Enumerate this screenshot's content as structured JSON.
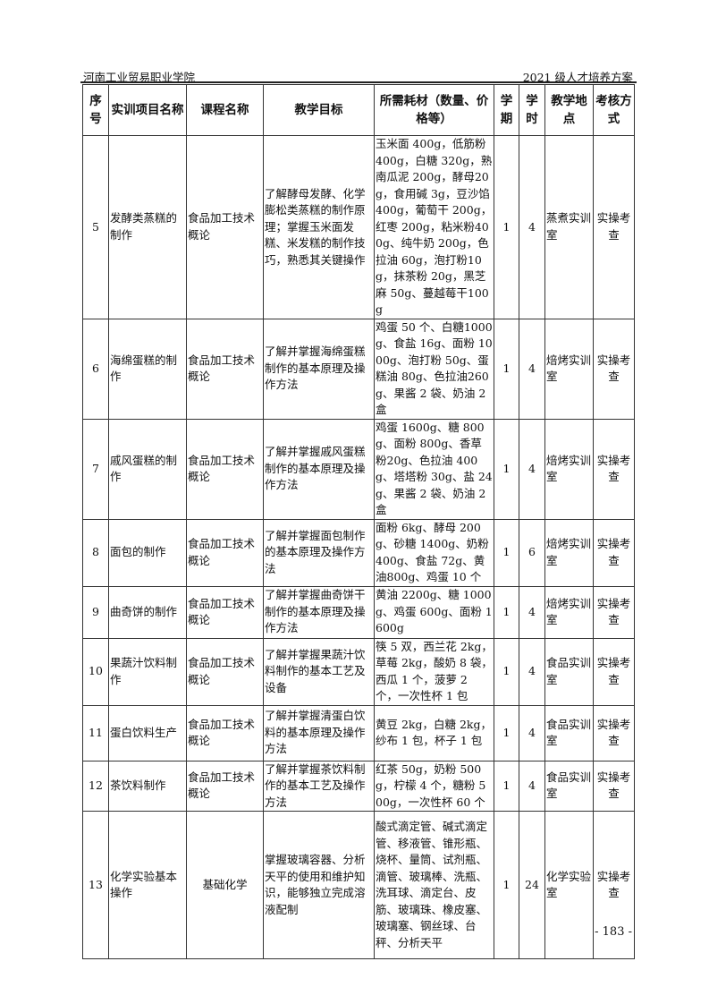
{
  "header": {
    "left": "河南工业贸易职业学院",
    "right": "2021 级人才培养方案"
  },
  "columns": [
    "序号",
    "实训项目名称",
    "课程名称",
    "教学目标",
    "所需耗材（数量、价格等）",
    "学期",
    "学时",
    "教学地点",
    "考核方式"
  ],
  "rows": [
    {
      "no": "5",
      "name": "发酵类蒸糕的制作",
      "course": "食品加工技术概论",
      "goal": "了解酵母发酵、化学膨松类蒸糕的制作原理；掌握玉米面发糕、米发糕的制作技巧，熟悉其关键操作",
      "materials": "玉米面 400g，低筋粉400g，白糖 320g，熟南瓜泥 200g，酵母20g，食用碱 3g，豆沙馅 400g，葡萄干 200g，红枣 200g，粘米粉400g、纯牛奶 200g，色拉油 60g，泡打粉10g，抹茶粉 20g，黑芝麻 50g、蔓越莓干100g",
      "term": "1",
      "hours": "4",
      "place": "蒸煮实训室",
      "exam": "实操考查"
    },
    {
      "no": "6",
      "name": "海绵蛋糕的制作",
      "course": "食品加工技术概论",
      "goal": "了解并掌握海绵蛋糕制作的基本原理及操作方法",
      "materials": "鸡蛋 50 个、白糖1000g、食盐 16g、面粉 1000g、泡打粉 50g、蛋糕油 80g、色拉油260g、果酱 2 袋、奶油 2 盒",
      "term": "1",
      "hours": "4",
      "place": "焙烤实训室",
      "exam": "实操考查"
    },
    {
      "no": "7",
      "name": "戚风蛋糕的制作",
      "course": "食品加工技术概论",
      "goal": "了解并掌握戚风蛋糕制作的基本原理及操作方法",
      "materials": "鸡蛋 1600g、糖 800g、面粉 800g、香草粉20g、色拉油 400g、塔塔粉 30g、盐 24g、果酱 2 袋、奶油 2 盒",
      "term": "1",
      "hours": "4",
      "place": "焙烤实训室",
      "exam": "实操考查"
    },
    {
      "no": "8",
      "name": "面包的制作",
      "course": "食品加工技术概论",
      "goal": "了解并掌握面包制作的基本原理及操作方法",
      "materials": "面粉 6kg、酵母 200g、砂糖 1400g、奶粉400g、食盐 72g、黄油800g、鸡蛋 10 个",
      "term": "1",
      "hours": "6",
      "place": "焙烤实训室",
      "exam": "实操考查"
    },
    {
      "no": "9",
      "name": "曲奇饼的制作",
      "course": "食品加工技术概论",
      "goal": "了解并掌握曲奇饼干制作的基本原理及操作方法",
      "materials": "黄油 2200g、糖 1000g、鸡蛋 600g、面粉 1600g",
      "term": "1",
      "hours": "4",
      "place": "焙烤实训室",
      "exam": "实操考查"
    },
    {
      "no": "10",
      "name": "果蔬汁饮料制作",
      "course": "食品加工技术概论",
      "goal": "了解并掌握果蔬汁饮料制作的基本工艺及设备",
      "materials": "筷 5 双，西兰花 2kg，草莓 2kg，酸奶 8 袋，西瓜 1 个，菠萝 2 个，一次性杯 1 包",
      "term": "1",
      "hours": "4",
      "place": "食品实训室",
      "exam": "实操考查"
    },
    {
      "no": "11",
      "name": "蛋白饮料生产",
      "course": "食品加工技术概论",
      "goal": "了解并掌握清蛋白饮料的基本原理及操作方法",
      "materials": "黄豆 2kg，白糖 2kg，纱布 1 包，杯子 1 包",
      "term": "1",
      "hours": "4",
      "place": "食品实训室",
      "exam": "实操考查"
    },
    {
      "no": "12",
      "name": "茶饮料制作",
      "course": "食品加工技术概论",
      "goal": "了解并掌握茶饮料制作的基本工艺及操作方法",
      "materials": "红茶 50g，奶粉 500g，柠檬 4 个，糖粉 500g，一次性杯 60 个",
      "term": "1",
      "hours": "4",
      "place": "食品实训室",
      "exam": "实操考查"
    },
    {
      "no": "13",
      "name": "化学实验基本操作",
      "course": "基础化学",
      "goal": "掌握玻璃容器、分析天平的使用和维护知识，能够独立完成溶液配制",
      "materials": "酸式滴定管、碱式滴定管、移液管、锥形瓶、烧杯、量筒、试剂瓶、滴管、玻璃棒、洗瓶、洗耳球、滴定台、皮筋、玻璃珠、橡皮塞、玻璃塞、钢丝球、台秤、分析天平",
      "term": "1",
      "hours": "24",
      "place": "化学实验室",
      "exam": "实操考查"
    }
  ],
  "footer": {
    "page": "- 183 -"
  }
}
